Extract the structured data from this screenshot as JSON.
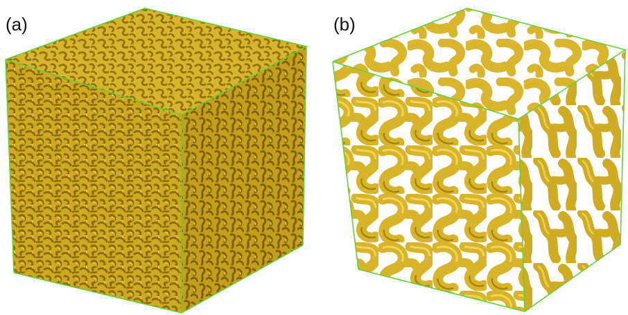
{
  "figure": {
    "panel_a": {
      "label": "(a)"
    },
    "panel_b": {
      "label": "(b)"
    }
  },
  "colors": {
    "material": "#d9b72e",
    "material_dark": "#a8860f",
    "material_light": "#ecd24e",
    "edge": "#62d13a",
    "background": "#ffffff"
  }
}
